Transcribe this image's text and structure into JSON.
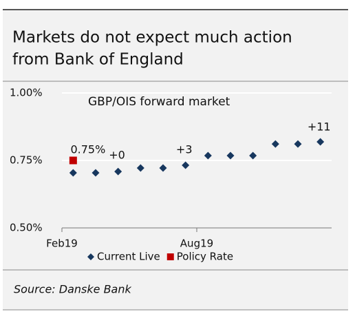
{
  "chart_data": {
    "type": "scatter",
    "title": "Markets do not expect much action from Bank of England",
    "title_lines": [
      "Markets do not expect much action",
      "from Bank of England"
    ],
    "subtitle": "GBP/OIS forward market",
    "source": "Source: Danske Bank",
    "xlim": [
      0,
      12
    ],
    "xticks": [
      {
        "value": 0,
        "label": "Feb19"
      },
      {
        "value": 6,
        "label": "Aug19"
      }
    ],
    "ylim": [
      0.5,
      1.0
    ],
    "yticks": [
      {
        "value": 0.5,
        "label": "0.50%"
      },
      {
        "value": 0.75,
        "label": "0.75%"
      },
      {
        "value": 1.0,
        "label": "1.00%"
      }
    ],
    "grid": true,
    "series": [
      {
        "name": "Current Live",
        "color": "#17375e",
        "marker": "diamond",
        "x": [
          0.5,
          1.5,
          2.5,
          3.5,
          4.5,
          5.5,
          6.5,
          7.5,
          8.5,
          9.5,
          10.5,
          11.5
        ],
        "values": [
          0.704,
          0.704,
          0.709,
          0.722,
          0.722,
          0.732,
          0.768,
          0.768,
          0.768,
          0.811,
          0.811,
          0.819
        ]
      },
      {
        "name": "Policy Rate",
        "color": "#c00000",
        "marker": "square",
        "x": [
          0.5
        ],
        "values": [
          0.75
        ]
      }
    ],
    "annotations": [
      {
        "text": "0.75%",
        "x": 1.16,
        "y": 0.788
      },
      {
        "text": "+0",
        "x": 2.45,
        "y": 0.768
      },
      {
        "text": "+3",
        "x": 5.44,
        "y": 0.788
      },
      {
        "text": "+11",
        "x": 11.44,
        "y": 0.872
      }
    ]
  }
}
